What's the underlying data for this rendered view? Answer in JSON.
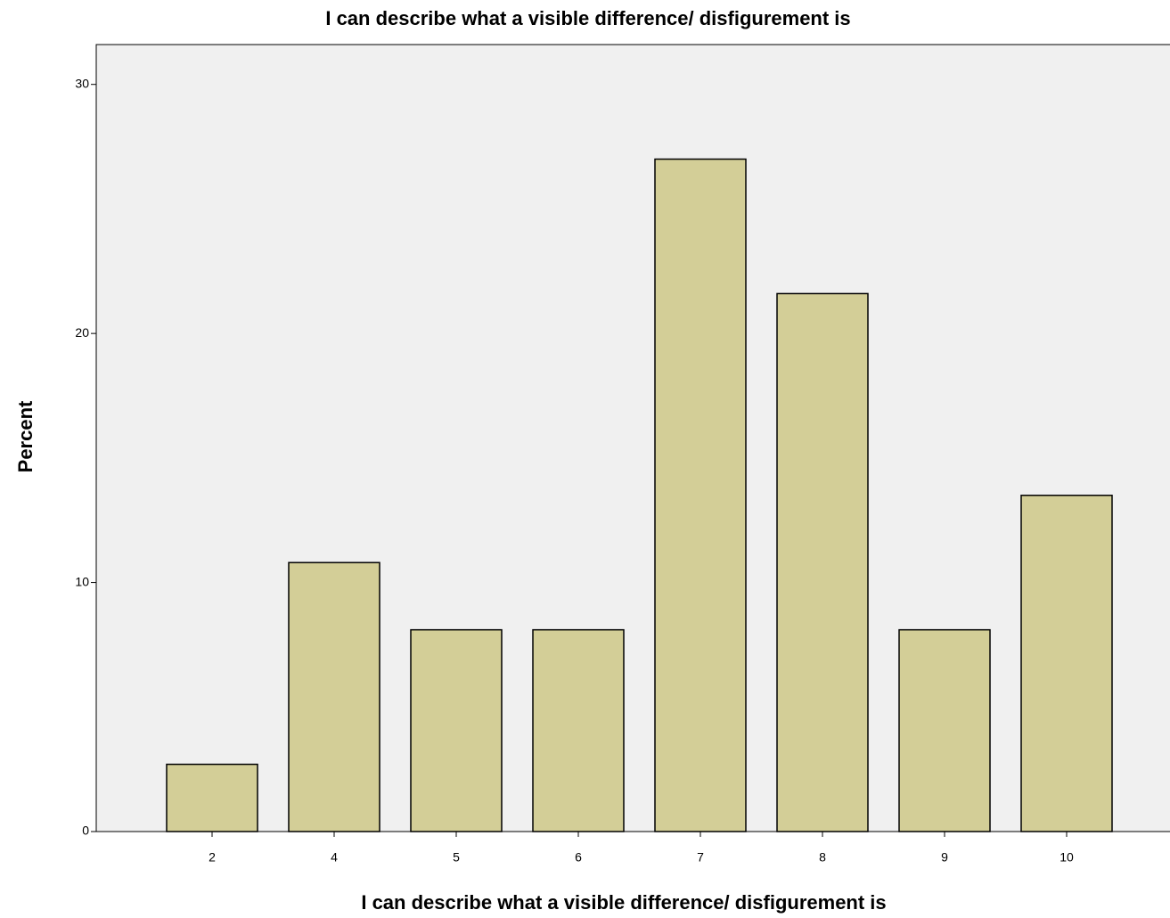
{
  "chart_data": {
    "type": "bar",
    "title": "I can describe what a visible difference/ disfigurement is",
    "x_label": "I can describe what a visible difference/ disfigurement is",
    "y_label": "Percent",
    "categories": [
      "2",
      "4",
      "5",
      "6",
      "7",
      "8",
      "9",
      "10"
    ],
    "values": [
      2.7,
      10.8,
      8.1,
      8.1,
      27.0,
      21.6,
      8.1,
      13.5
    ],
    "color": "#d3ce97",
    "ylim": [
      0,
      31.6
    ],
    "yticks": [
      0,
      10,
      20,
      30
    ],
    "grid": false
  }
}
